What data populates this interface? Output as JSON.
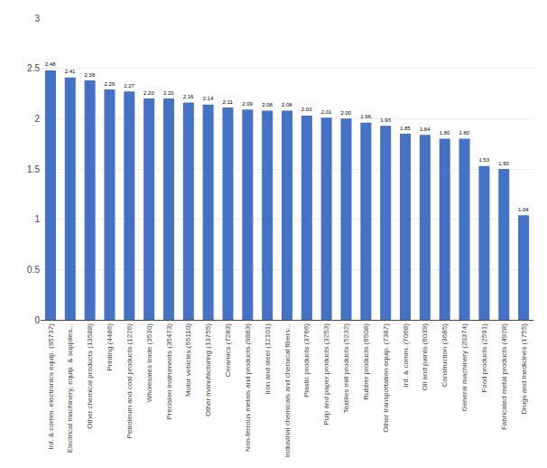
{
  "chart_data": {
    "type": "bar",
    "categories": [
      "Inf. & comm. electronics equip. (95737)",
      "Electrical machinery, equip. & supplies...",
      "Other chemical products (13588)",
      "Printing (4486)",
      "Petroleum and coal products (1226)",
      "Wholesales trade (3530)",
      "Precision instruments (35473)",
      "Motor vehicles (55110)",
      "Other manufacturing (13755)",
      "Ceramics (7283)",
      "Non-ferrous metals and products (9883)",
      "Iron and steel (12101)",
      "Industrial chemicals and chemical fibers...",
      "Plastic products (3766)",
      "Pulp and paper products (3253)",
      "Textiles mill products (5232)",
      "Rubber products (6508)",
      "Other transportation equip. (7387)",
      "Inf. & comm. (7068)",
      "Oil and paints (6039)",
      "Construction (3685)",
      "General machinery (20374)",
      "Food products (2591)",
      "Fabricated metal products (4928)",
      "Drugs and medicines (1755)"
    ],
    "values": [
      2.48,
      2.41,
      2.38,
      2.29,
      2.27,
      2.2,
      2.2,
      2.16,
      2.14,
      2.11,
      2.09,
      2.08,
      2.08,
      2.03,
      2.01,
      2.0,
      1.96,
      1.93,
      1.85,
      1.84,
      1.8,
      1.8,
      1.53,
      1.5,
      1.04
    ],
    "value_labels": [
      "2.48",
      "2.41",
      "2.38",
      "2.29",
      "2.27",
      "2.20",
      "2.20",
      "2.16",
      "2.14",
      "2.11",
      "2.09",
      "2.08",
      "2.08",
      "2.03",
      "2.01",
      "2.00",
      "1.96",
      "1.93",
      "1.85",
      "1.84",
      "1.80",
      "1.80",
      "1.53",
      "1.50",
      "1.04"
    ],
    "data_labels": true,
    "color": "#4472C4",
    "ylim": [
      0,
      3
    ],
    "yticks": [
      0,
      0.5,
      1,
      1.5,
      2,
      2.5,
      3
    ],
    "grid": true
  }
}
